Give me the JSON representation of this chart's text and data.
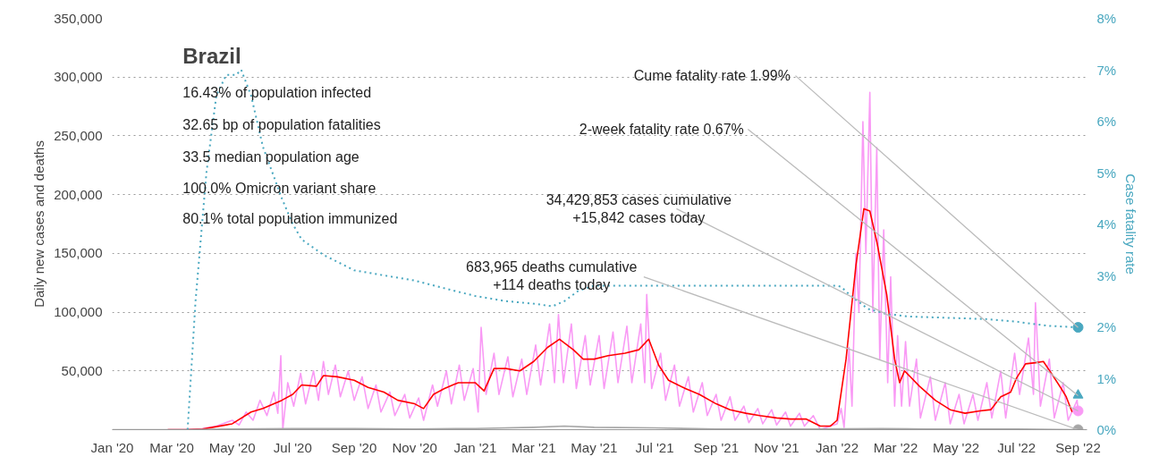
{
  "chart_data": {
    "type": "line",
    "title": "Brazil",
    "ylabel": "Daily new cases and deaths",
    "y2label": "Case fatality rate",
    "annotations": [
      "16.43% of population infected",
      "32.65 bp of population fatalities",
      "33.5 median population age",
      "100.0% Omicron variant share",
      "80.1% total population immunized",
      {
        "text": "Cume fatality rate 1.99%",
        "x": "2022-09-01",
        "y": 87000
      },
      {
        "text": "2-week fatality rate 0.67%",
        "x": "2022-09-01",
        "y": 29000
      },
      {
        "text": "34,429,853 cases cumulative\n+15,842 cases today",
        "x": "2022-09-01",
        "y": 16000
      },
      {
        "text": "683,965 deaths cumulative\n+114 deaths today",
        "x": "2022-09-01",
        "y": 0
      }
    ],
    "xlim": [
      "2020-01-01",
      "2022-09-10"
    ],
    "xticks": [
      {
        "value": "2020-01-01",
        "label": "Jan '20"
      },
      {
        "value": "2020-03-01",
        "label": "Mar '20"
      },
      {
        "value": "2020-05-01",
        "label": "May '20"
      },
      {
        "value": "2020-07-01",
        "label": "Jul '20"
      },
      {
        "value": "2020-09-01",
        "label": "Sep '20"
      },
      {
        "value": "2020-11-01",
        "label": "Nov '20"
      },
      {
        "value": "2021-01-01",
        "label": "Jan '21"
      },
      {
        "value": "2021-03-01",
        "label": "Mar '21"
      },
      {
        "value": "2021-05-01",
        "label": "May '21"
      },
      {
        "value": "2021-07-01",
        "label": "Jul '21"
      },
      {
        "value": "2021-09-01",
        "label": "Sep '21"
      },
      {
        "value": "2021-11-01",
        "label": "Nov '21"
      },
      {
        "value": "2022-01-01",
        "label": "Jan '22"
      },
      {
        "value": "2022-03-01",
        "label": "Mar '22"
      },
      {
        "value": "2022-05-01",
        "label": "May '22"
      },
      {
        "value": "2022-07-01",
        "label": "Jul '22"
      },
      {
        "value": "2022-09-01",
        "label": "Sep '22"
      }
    ],
    "ylim": [
      0,
      350000
    ],
    "yticks": [
      {
        "value": 0,
        "label": null
      },
      {
        "value": 50000,
        "label": "50,000"
      },
      {
        "value": 100000,
        "label": "100,000"
      },
      {
        "value": 150000,
        "label": "150,000"
      },
      {
        "value": 200000,
        "label": "200,000"
      },
      {
        "value": 250000,
        "label": "250,000"
      },
      {
        "value": 300000,
        "label": "300,000"
      },
      {
        "value": 350000,
        "label": "350,000"
      }
    ],
    "y2lim": [
      0,
      8
    ],
    "y2ticks": [
      {
        "value": 0,
        "label": "0%"
      },
      {
        "value": 1,
        "label": "1%"
      },
      {
        "value": 2,
        "label": "2%"
      },
      {
        "value": 3,
        "label": "3%"
      },
      {
        "value": 4,
        "label": "4%"
      },
      {
        "value": 5,
        "label": "5%"
      },
      {
        "value": 6,
        "label": "6%"
      },
      {
        "value": 7,
        "label": "7%"
      },
      {
        "value": 8,
        "label": "8%"
      }
    ],
    "grid": "y",
    "series": [
      {
        "color": "#f99af5",
        "x": [
          "2020-02-26",
          "2020-03-15",
          "2020-04-01",
          "2020-04-15",
          "2020-05-01",
          "2020-05-08",
          "2020-05-15",
          "2020-05-22",
          "2020-05-29",
          "2020-06-05",
          "2020-06-12",
          "2020-06-16",
          "2020-06-19",
          "2020-06-21",
          "2020-06-26",
          "2020-07-02",
          "2020-07-09",
          "2020-07-14",
          "2020-07-22",
          "2020-07-27",
          "2020-08-01",
          "2020-08-06",
          "2020-08-13",
          "2020-08-18",
          "2020-08-26",
          "2020-09-01",
          "2020-09-09",
          "2020-09-15",
          "2020-09-23",
          "2020-09-28",
          "2020-10-07",
          "2020-10-12",
          "2020-10-22",
          "2020-10-27",
          "2020-11-05",
          "2020-11-10",
          "2020-11-19",
          "2020-11-24",
          "2020-12-03",
          "2020-12-08",
          "2020-12-16",
          "2020-12-21",
          "2020-12-30",
          "2021-01-04",
          "2021-01-07",
          "2021-01-12",
          "2021-01-20",
          "2021-01-25",
          "2021-02-03",
          "2021-02-08",
          "2021-02-17",
          "2021-02-22",
          "2021-03-03",
          "2021-03-08",
          "2021-03-17",
          "2021-03-22",
          "2021-03-26",
          "2021-03-31",
          "2021-04-08",
          "2021-04-13",
          "2021-04-22",
          "2021-04-27",
          "2021-05-06",
          "2021-05-11",
          "2021-05-20",
          "2021-05-25",
          "2021-06-03",
          "2021-06-08",
          "2021-06-17",
          "2021-06-21",
          "2021-06-23",
          "2021-06-28",
          "2021-07-07",
          "2021-07-12",
          "2021-07-21",
          "2021-07-26",
          "2021-08-04",
          "2021-08-09",
          "2021-08-18",
          "2021-08-23",
          "2021-09-01",
          "2021-09-06",
          "2021-09-15",
          "2021-09-20",
          "2021-09-29",
          "2021-10-04",
          "2021-10-13",
          "2021-10-18",
          "2021-10-27",
          "2021-11-01",
          "2021-11-10",
          "2021-11-15",
          "2021-11-24",
          "2021-11-29",
          "2021-12-08",
          "2021-12-15",
          "2021-12-25",
          "2022-01-01",
          "2022-01-05",
          "2022-01-08",
          "2022-01-13",
          "2022-01-16",
          "2022-01-20",
          "2022-01-23",
          "2022-01-27",
          "2022-01-30",
          "2022-02-03",
          "2022-02-06",
          "2022-02-10",
          "2022-02-13",
          "2022-02-17",
          "2022-02-21",
          "2022-02-24",
          "2022-02-28",
          "2022-03-03",
          "2022-03-07",
          "2022-03-11",
          "2022-03-15",
          "2022-03-22",
          "2022-03-26",
          "2022-04-05",
          "2022-04-10",
          "2022-04-20",
          "2022-04-25",
          "2022-05-04",
          "2022-05-09",
          "2022-05-18",
          "2022-05-23",
          "2022-06-01",
          "2022-06-06",
          "2022-06-15",
          "2022-06-20",
          "2022-06-29",
          "2022-07-04",
          "2022-07-13",
          "2022-07-18",
          "2022-07-20",
          "2022-07-25",
          "2022-08-03",
          "2022-08-08",
          "2022-08-17",
          "2022-08-22",
          "2022-08-31",
          "2022-09-01"
        ],
        "values": [
          0,
          0,
          1000,
          3000,
          8000,
          4000,
          15000,
          8000,
          25000,
          12000,
          32000,
          14000,
          63000,
          0,
          40000,
          20000,
          48000,
          22000,
          50000,
          25000,
          58000,
          30000,
          55000,
          28000,
          50000,
          25000,
          45000,
          18000,
          38000,
          15000,
          32000,
          12000,
          30000,
          10000,
          27000,
          8000,
          38000,
          20000,
          50000,
          22000,
          55000,
          25000,
          52000,
          15000,
          87000,
          30000,
          65000,
          30000,
          62000,
          28000,
          60000,
          30000,
          72000,
          38000,
          90000,
          40000,
          98000,
          40000,
          90000,
          35000,
          80000,
          38000,
          80000,
          35000,
          83000,
          40000,
          88000,
          40000,
          90000,
          40000,
          115000,
          35000,
          65000,
          25000,
          55000,
          20000,
          45000,
          15000,
          40000,
          12000,
          30000,
          8000,
          28000,
          8000,
          20000,
          6000,
          18000,
          5000,
          17000,
          4000,
          15000,
          3000,
          14000,
          3000,
          12000,
          0,
          3000,
          5000,
          18000,
          2000,
          70000,
          20000,
          150000,
          100000,
          262000,
          150000,
          287000,
          100000,
          240000,
          60000,
          170000,
          40000,
          130000,
          20000,
          80000,
          20000,
          75000,
          20000,
          60000,
          10000,
          45000,
          8000,
          40000,
          5000,
          30000,
          5000,
          30000,
          8000,
          40000,
          10000,
          50000,
          10000,
          65000,
          30000,
          78000,
          30000,
          108000,
          20000,
          60000,
          10000,
          40000,
          8000,
          25000,
          16000
        ]
      },
      {
        "color": "#ff0000",
        "x": [
          "2020-02-26",
          "2020-03-15",
          "2020-04-01",
          "2020-05-01",
          "2020-05-20",
          "2020-06-01",
          "2020-06-20",
          "2020-07-01",
          "2020-07-10",
          "2020-07-25",
          "2020-08-01",
          "2020-08-15",
          "2020-09-01",
          "2020-09-15",
          "2020-10-01",
          "2020-10-15",
          "2020-11-01",
          "2020-11-10",
          "2020-11-20",
          "2020-12-01",
          "2020-12-15",
          "2021-01-01",
          "2021-01-10",
          "2021-01-20",
          "2021-02-01",
          "2021-02-15",
          "2021-03-01",
          "2021-03-15",
          "2021-03-27",
          "2021-04-10",
          "2021-04-20",
          "2021-05-01",
          "2021-05-15",
          "2021-06-01",
          "2021-06-15",
          "2021-06-25",
          "2021-07-05",
          "2021-07-15",
          "2021-08-01",
          "2021-08-15",
          "2021-09-01",
          "2021-09-15",
          "2021-10-01",
          "2021-10-15",
          "2021-11-01",
          "2021-11-15",
          "2021-12-01",
          "2021-12-15",
          "2021-12-25",
          "2022-01-01",
          "2022-01-10",
          "2022-01-20",
          "2022-01-28",
          "2022-02-03",
          "2022-02-10",
          "2022-02-20",
          "2022-02-28",
          "2022-03-05",
          "2022-03-10",
          "2022-03-25",
          "2022-04-10",
          "2022-04-25",
          "2022-05-10",
          "2022-05-25",
          "2022-06-05",
          "2022-06-15",
          "2022-06-25",
          "2022-07-01",
          "2022-07-10",
          "2022-07-20",
          "2022-07-28",
          "2022-08-05",
          "2022-08-15",
          "2022-08-20",
          "2022-08-26"
        ],
        "values": [
          0,
          0,
          500,
          5000,
          15000,
          18000,
          25000,
          30000,
          38000,
          37000,
          46000,
          45000,
          42000,
          36000,
          32000,
          25000,
          22000,
          18000,
          30000,
          35000,
          40000,
          40000,
          33000,
          52000,
          52000,
          50000,
          58000,
          70000,
          77000,
          68000,
          60000,
          60000,
          63000,
          65000,
          68000,
          77000,
          55000,
          42000,
          35000,
          30000,
          22000,
          17000,
          14000,
          12000,
          10000,
          9000,
          9000,
          3000,
          3000,
          8000,
          60000,
          140000,
          188000,
          186000,
          160000,
          115000,
          60000,
          40000,
          50000,
          37000,
          25000,
          17000,
          14000,
          16000,
          17000,
          28000,
          32000,
          44000,
          56000,
          57000,
          58000,
          48000,
          35000,
          28000,
          15000
        ]
      },
      {
        "color": "#a6a6a6",
        "x": [
          "2020-01-01",
          "2020-03-15",
          "2020-05-01",
          "2020-07-01",
          "2020-09-01",
          "2020-11-01",
          "2021-01-01",
          "2021-03-01",
          "2021-04-01",
          "2021-05-01",
          "2021-07-01",
          "2021-09-01",
          "2021-12-01",
          "2022-02-15",
          "2022-04-01",
          "2022-07-01",
          "2022-09-01"
        ],
        "values": [
          0,
          0,
          500,
          1000,
          1000,
          500,
          1000,
          2000,
          3000,
          2000,
          1500,
          500,
          500,
          1000,
          500,
          500,
          0
        ]
      },
      {
        "axis": "y2",
        "line_style": "dotted",
        "color": "#4aa8c0",
        "x": [
          "2020-03-17",
          "2020-03-25",
          "2020-04-05",
          "2020-04-15",
          "2020-04-25",
          "2020-05-05",
          "2020-05-10",
          "2020-05-20",
          "2020-06-01",
          "2020-06-20",
          "2020-07-01",
          "2020-07-10",
          "2020-08-01",
          "2020-09-01",
          "2020-10-01",
          "2020-11-01",
          "2020-12-01",
          "2021-01-01",
          "2021-02-01",
          "2021-03-01",
          "2021-03-20",
          "2021-04-01",
          "2021-04-15",
          "2021-05-01",
          "2021-07-01",
          "2021-12-31",
          "2022-01-05",
          "2022-01-15",
          "2022-02-01",
          "2022-02-20",
          "2022-03-15",
          "2022-06-01",
          "2022-07-01",
          "2022-08-01",
          "2022-09-01"
        ],
        "values": [
          0,
          2.5,
          5,
          6.5,
          6.9,
          6.9,
          7.0,
          6.5,
          5.5,
          4.5,
          4.0,
          3.7,
          3.4,
          3.1,
          3.0,
          2.9,
          2.75,
          2.6,
          2.5,
          2.45,
          2.4,
          2.5,
          2.7,
          2.8,
          2.8,
          2.8,
          2.78,
          2.6,
          2.35,
          2.25,
          2.2,
          2.15,
          2.1,
          2.02,
          1.99
        ]
      },
      {
        "type": "scatter",
        "axis": "y2",
        "marker": "circle",
        "color": "#4aa8c0",
        "x": [
          "2022-09-01"
        ],
        "values": [
          1.99
        ]
      },
      {
        "type": "scatter",
        "axis": "y2",
        "marker": "triangle",
        "color": "#4aa8c0",
        "x": [
          "2022-09-01"
        ],
        "values": [
          0.67
        ]
      },
      {
        "type": "scatter",
        "marker": "circle",
        "color": "#f99af5",
        "x": [
          "2022-09-01"
        ],
        "values": [
          16000
        ]
      },
      {
        "type": "scatter",
        "marker": "circle",
        "color": "#a6a6a6",
        "x": [
          "2022-09-01"
        ],
        "values": [
          0
        ]
      }
    ]
  }
}
